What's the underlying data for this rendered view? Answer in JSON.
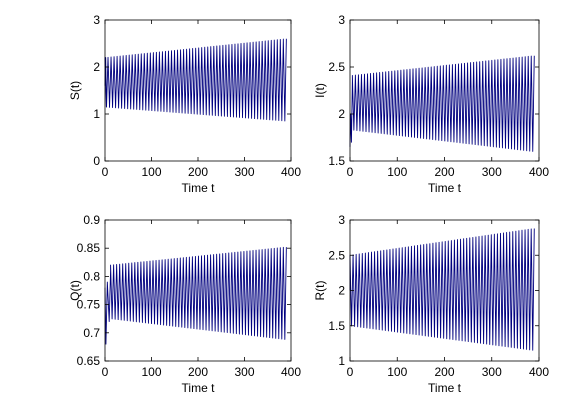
{
  "chart_data": [
    {
      "type": "line",
      "xlabel": "Time t",
      "ylabel": "S(t)",
      "xlim": [
        0,
        400
      ],
      "ylim": [
        0,
        3
      ],
      "xticks": [
        "0",
        "100",
        "200",
        "300",
        "400"
      ],
      "yticks": [
        "0",
        "1",
        "2",
        "3"
      ],
      "grid": false,
      "color": "#00007F",
      "oscillation": {
        "x_start": 0,
        "x_end": 390,
        "cycles": 60,
        "upper_start": 2.2,
        "upper_end": 2.6,
        "lower_start": 1.15,
        "lower_end": 0.85
      },
      "transient": [
        {
          "x": 0,
          "y": 1.6
        },
        {
          "x": 1.5,
          "y": 2.2
        },
        {
          "x": 3,
          "y": 1.15
        }
      ]
    },
    {
      "type": "line",
      "xlabel": "Time t",
      "ylabel": "I(t)",
      "xlim": [
        0,
        400
      ],
      "ylim": [
        1.5,
        3
      ],
      "xticks": [
        "0",
        "100",
        "200",
        "300",
        "400"
      ],
      "yticks": [
        "1.5",
        "2",
        "2.5",
        "3"
      ],
      "grid": false,
      "color": "#00007F",
      "oscillation": {
        "x_start": 5,
        "x_end": 390,
        "cycles": 60,
        "upper_start": 2.41,
        "upper_end": 2.62,
        "lower_start": 1.83,
        "lower_end": 1.6
      },
      "transient": [
        {
          "x": 0,
          "y": 1.65
        },
        {
          "x": 1.5,
          "y": 2.0
        },
        {
          "x": 3,
          "y": 1.7
        },
        {
          "x": 5,
          "y": 2.35
        }
      ]
    },
    {
      "type": "line",
      "xlabel": "Time t",
      "ylabel": "Q(t)",
      "xlim": [
        0,
        400
      ],
      "ylim": [
        0.65,
        0.9
      ],
      "xticks": [
        "0",
        "100",
        "200",
        "300",
        "400"
      ],
      "yticks": [
        "0.65",
        "0.7",
        "0.75",
        "0.8",
        "0.85",
        "0.9"
      ],
      "grid": false,
      "color": "#00007F",
      "oscillation": {
        "x_start": 12,
        "x_end": 390,
        "cycles": 58,
        "upper_start": 0.82,
        "upper_end": 0.852,
        "lower_start": 0.725,
        "lower_end": 0.688
      },
      "transient": [
        {
          "x": 0,
          "y": 0.78
        },
        {
          "x": 2,
          "y": 0.68
        },
        {
          "x": 5,
          "y": 0.79
        },
        {
          "x": 9,
          "y": 0.72
        },
        {
          "x": 12,
          "y": 0.81
        }
      ]
    },
    {
      "type": "line",
      "xlabel": "Time t",
      "ylabel": "R(t)",
      "xlim": [
        0,
        400
      ],
      "ylim": [
        1,
        3
      ],
      "xticks": [
        "0",
        "100",
        "200",
        "300",
        "400"
      ],
      "yticks": [
        "1",
        "1.5",
        "2",
        "2.5",
        "3"
      ],
      "grid": false,
      "color": "#00007F",
      "oscillation": {
        "x_start": 0,
        "x_end": 390,
        "cycles": 60,
        "upper_start": 2.5,
        "upper_end": 2.88,
        "lower_start": 1.5,
        "lower_end": 1.15
      },
      "transient": [
        {
          "x": 0,
          "y": 2.0
        }
      ]
    }
  ]
}
